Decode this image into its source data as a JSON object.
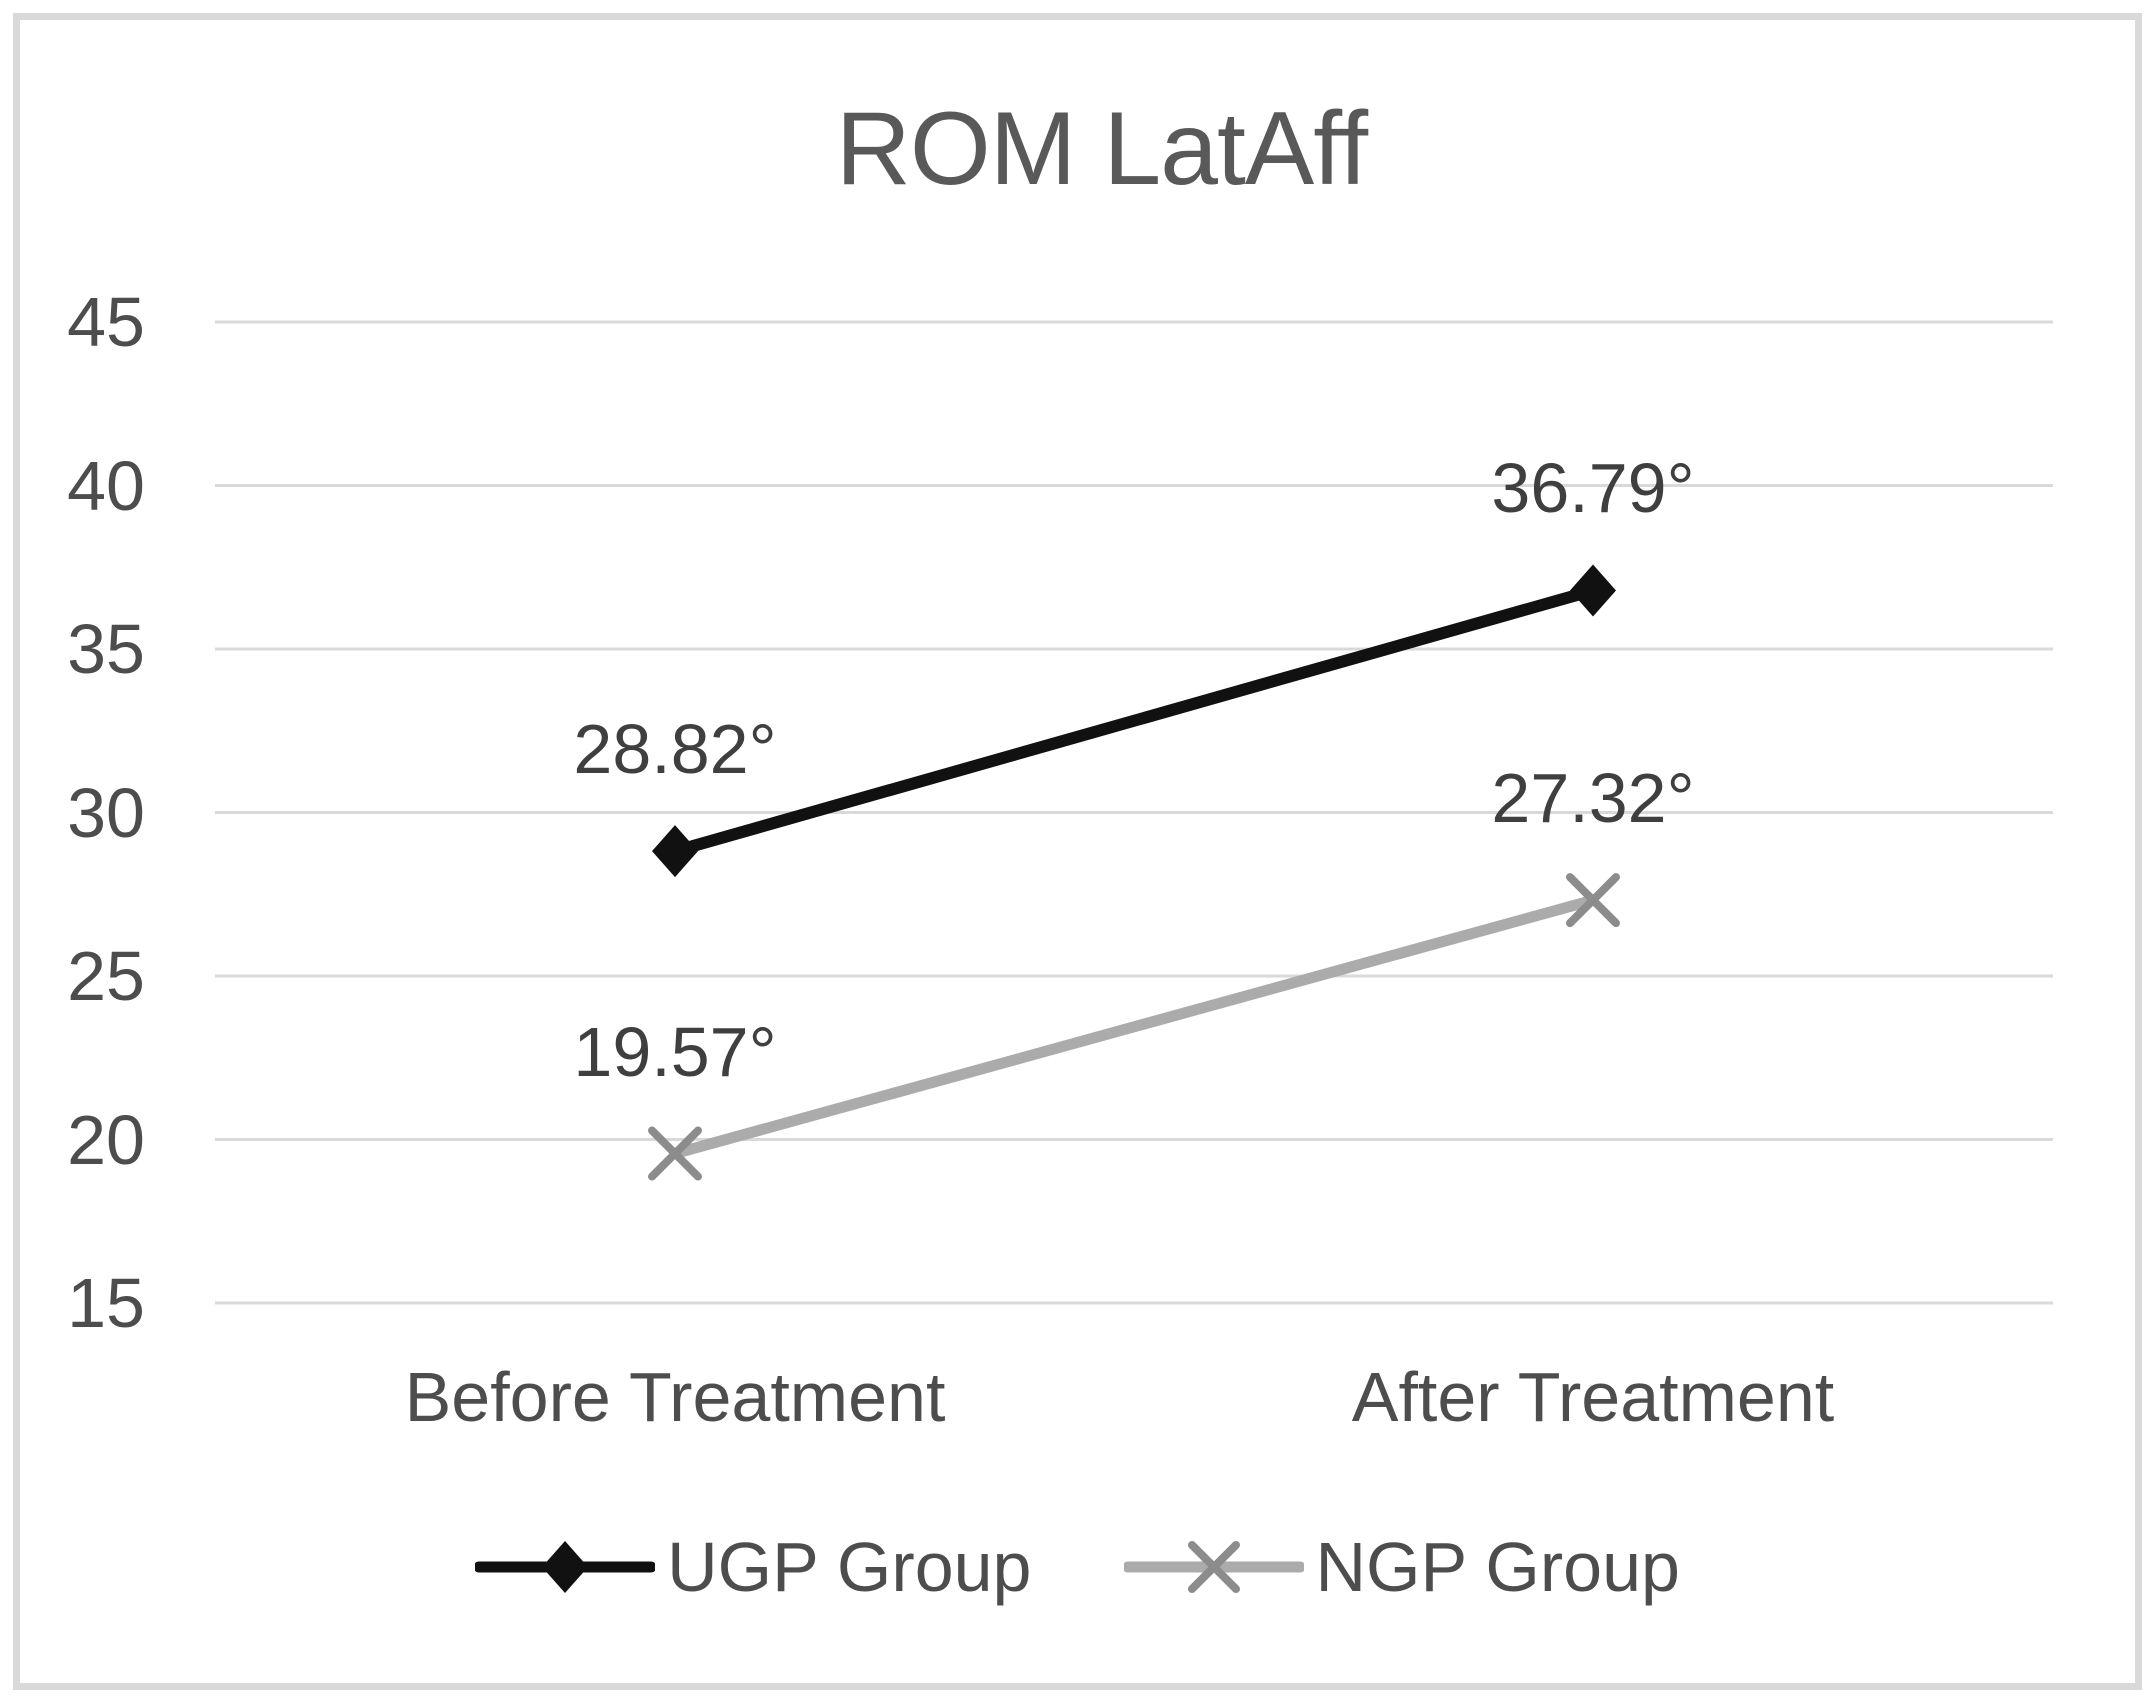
{
  "chart_data": {
    "type": "line",
    "title": "ROM LatAff",
    "categories": [
      "Before Treatment",
      "After Treatment"
    ],
    "series": [
      {
        "id": "ugp",
        "name": "UGP Group",
        "marker": "diamond",
        "line_color": "#111111",
        "marker_color": "#111111",
        "values": [
          28.82,
          36.79
        ],
        "labels": [
          "28.82°",
          "36.79°"
        ]
      },
      {
        "id": "ngp",
        "name": "NGP Group",
        "marker": "x",
        "line_color": "#ababab",
        "marker_color": "#8c8c8c",
        "values": [
          19.57,
          27.32
        ],
        "labels": [
          "19.57°",
          "27.32°"
        ]
      }
    ],
    "y_axis": {
      "min": 15,
      "max": 45,
      "step": 5,
      "ticks": [
        45,
        40,
        35,
        30,
        25,
        20,
        15
      ]
    },
    "grid": true,
    "grid_color": "#d9d9d9",
    "frame_color": "#d9d9d9",
    "legend_position": "bottom"
  }
}
